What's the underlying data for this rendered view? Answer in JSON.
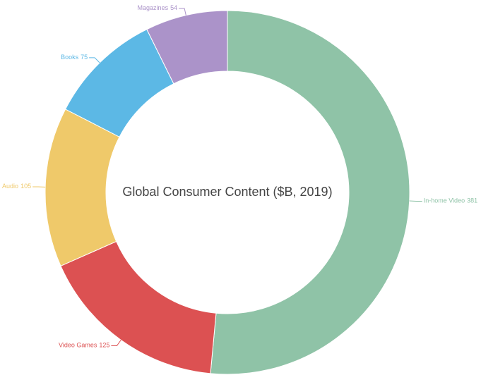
{
  "chart_data": {
    "type": "pie",
    "title": "Global Consumer Content ($B, 2019)",
    "categories": [
      "In-home Video",
      "Video Games",
      "Audio",
      "Books",
      "Magazines"
    ],
    "values": [
      381,
      125,
      105,
      75,
      54
    ],
    "colors": [
      "#8fc3a7",
      "#dc5152",
      "#efc96a",
      "#5cb8e5",
      "#ab93c9"
    ]
  }
}
